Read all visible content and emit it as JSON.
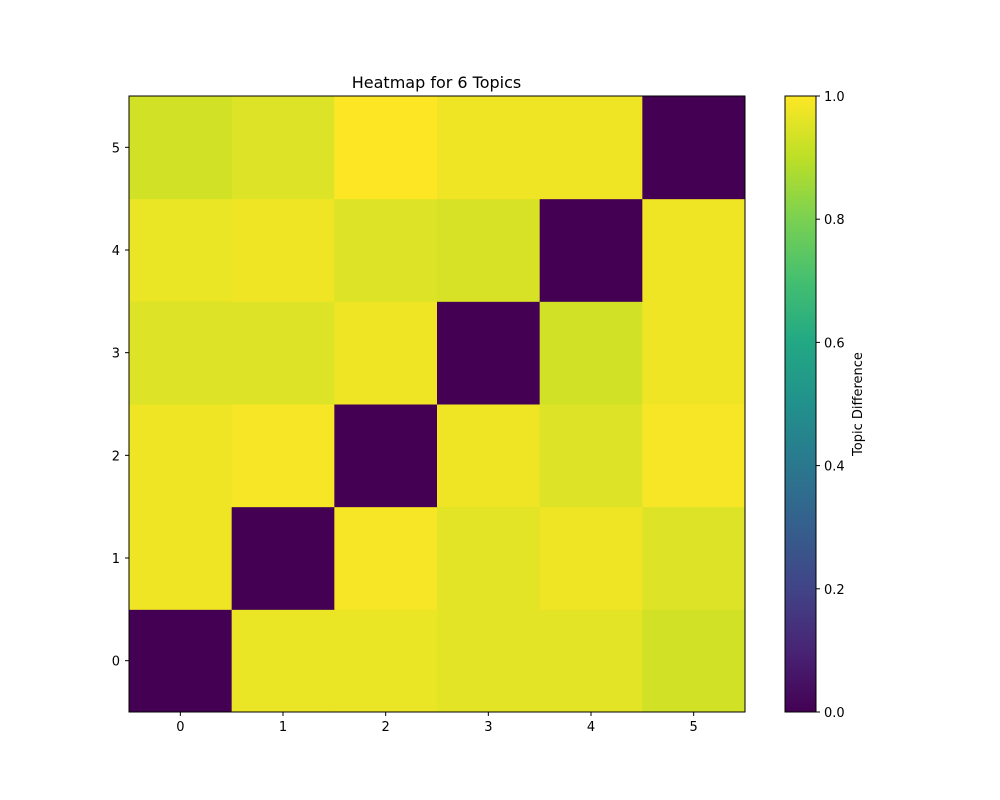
{
  "chart_data": {
    "type": "heatmap",
    "title": "Heatmap for 6 Topics",
    "x_categories": [
      "0",
      "1",
      "2",
      "3",
      "4",
      "5"
    ],
    "y_categories": [
      "0",
      "1",
      "2",
      "3",
      "4",
      "5"
    ],
    "rows_bottom_to_top": [
      [
        0.0,
        0.97,
        0.97,
        0.96,
        0.96,
        0.93
      ],
      [
        0.98,
        0.0,
        0.99,
        0.96,
        0.98,
        0.95
      ],
      [
        0.98,
        0.99,
        0.0,
        0.98,
        0.95,
        0.99
      ],
      [
        0.95,
        0.95,
        0.98,
        0.0,
        0.93,
        0.98
      ],
      [
        0.97,
        0.98,
        0.95,
        0.94,
        0.0,
        0.98
      ],
      [
        0.93,
        0.95,
        1.0,
        0.98,
        0.98,
        0.0
      ]
    ],
    "colorbar": {
      "label": "Topic Difference",
      "range": [
        0.0,
        1.0
      ],
      "ticks": [
        "0.0",
        "0.2",
        "0.4",
        "0.6",
        "0.8",
        "1.0"
      ],
      "colormap": "viridis"
    }
  }
}
